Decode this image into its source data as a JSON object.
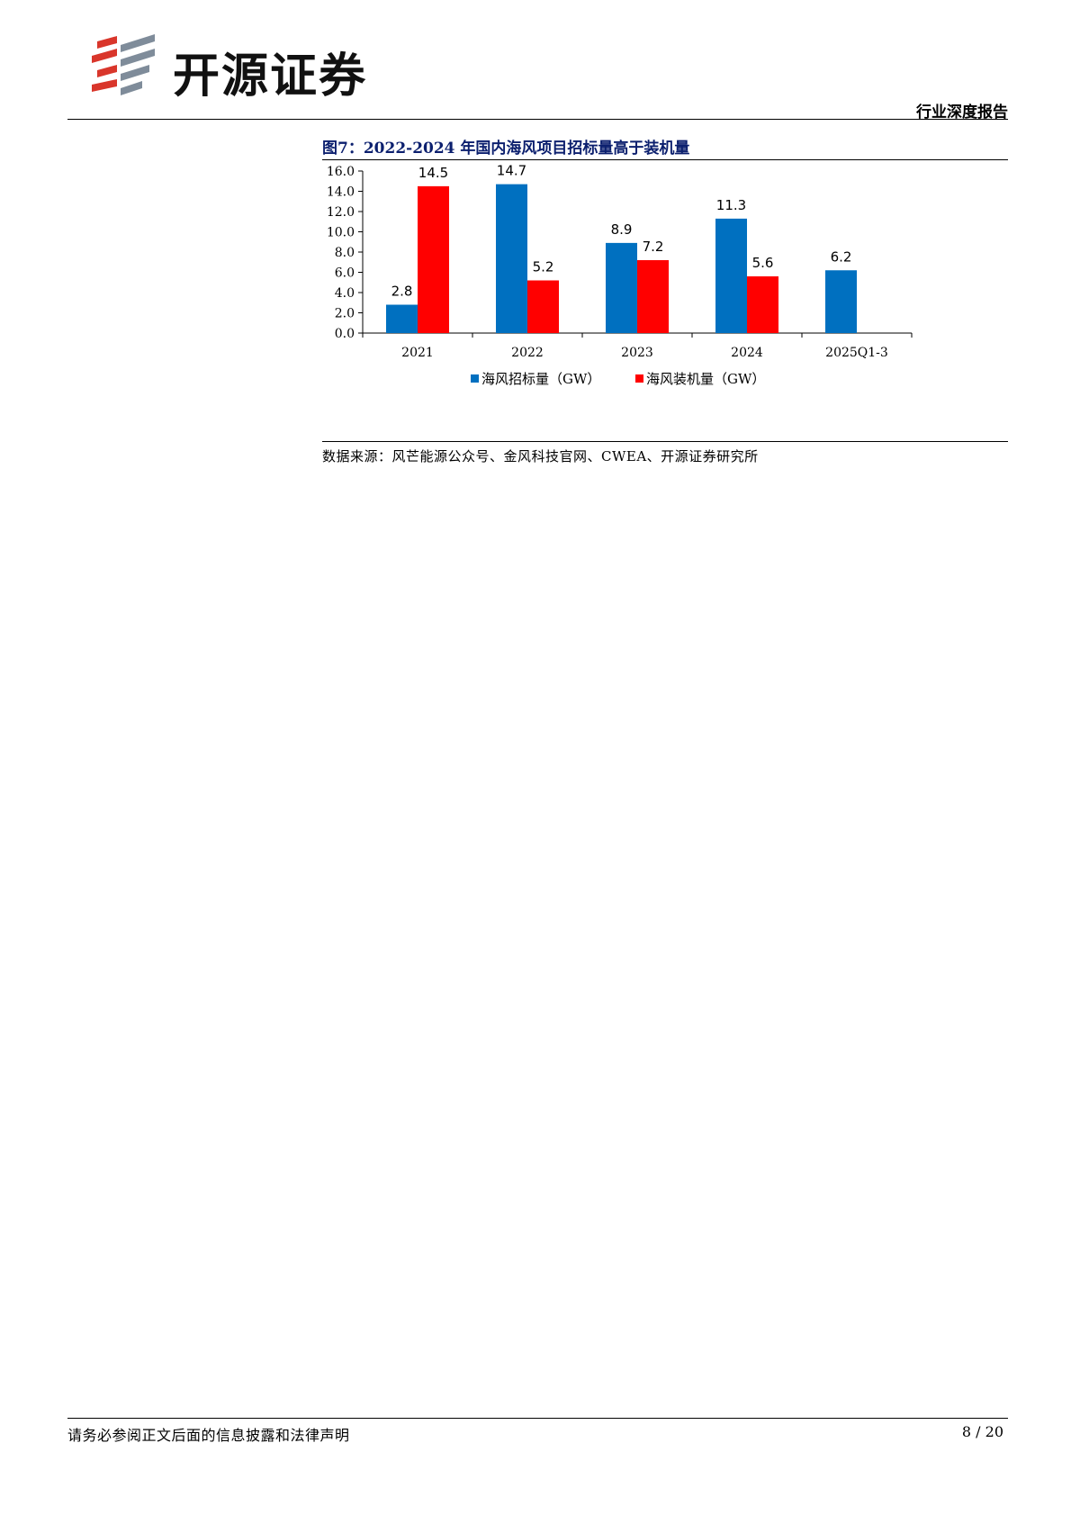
{
  "header": {
    "logo_text": "开源证券",
    "report_type": "行业深度报告"
  },
  "figure": {
    "title": "图7：2022-2024 年国内海风项目招标量高于装机量",
    "source": "数据来源：风芒能源公众号、金风科技官网、CWEA、开源证券研究所"
  },
  "chart_data": {
    "type": "bar",
    "categories": [
      "2021",
      "2022",
      "2023",
      "2024",
      "2025Q1-3"
    ],
    "series": [
      {
        "name": "海风招标量（GW）",
        "values": [
          2.8,
          14.7,
          8.9,
          11.3,
          6.2
        ],
        "labels": [
          "2.8",
          "14.7",
          "8.9",
          "11.3",
          "6.2"
        ],
        "color": "#0070c0"
      },
      {
        "name": "海风装机量（GW）",
        "values": [
          14.5,
          5.2,
          7.2,
          5.6,
          null
        ],
        "labels": [
          "14.5",
          "5.2",
          "7.2",
          "5.6",
          null
        ],
        "color": "#ff0000"
      }
    ],
    "ylim": [
      0,
      16
    ],
    "yticks": [
      "0.0",
      "2.0",
      "4.0",
      "6.0",
      "8.0",
      "10.0",
      "12.0",
      "14.0",
      "16.0"
    ],
    "grid": false,
    "legend": "bottom"
  },
  "footer": {
    "disclaimer": "请务必参阅正文后面的信息披露和法律声明",
    "page": "8 / 20"
  }
}
